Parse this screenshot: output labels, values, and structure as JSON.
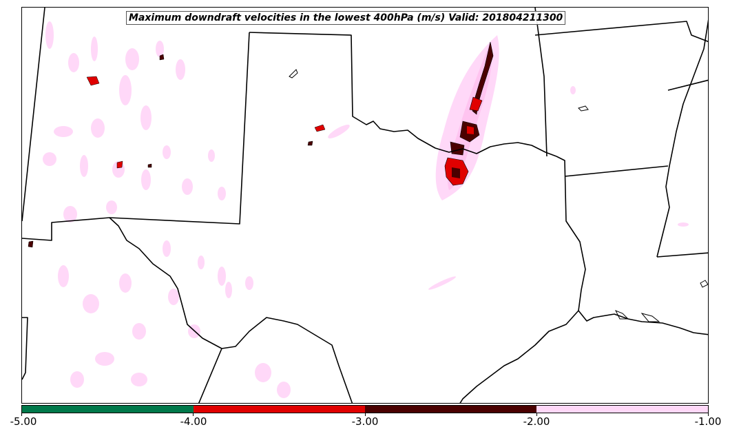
{
  "title": "Maximum downdraft velocities in the lowest 400hPa (m/s) Valid: 201804211300",
  "colorbar": {
    "colors": [
      "#00784a",
      "#e00000",
      "#4a0000",
      "#ffd8f8"
    ],
    "tick_labels": [
      "-5.00",
      "-4.00",
      "-3.00",
      "-2.00",
      "-1.00"
    ]
  },
  "map": {
    "region": "Southern Plains (Texas, Oklahoma and surrounding states)",
    "colors": {
      "weak_downdraft": "#ffd8f8",
      "moderate_downdraft": "#4a0000",
      "strong_downdraft": "#e00000",
      "boundary": "#000000"
    }
  }
}
